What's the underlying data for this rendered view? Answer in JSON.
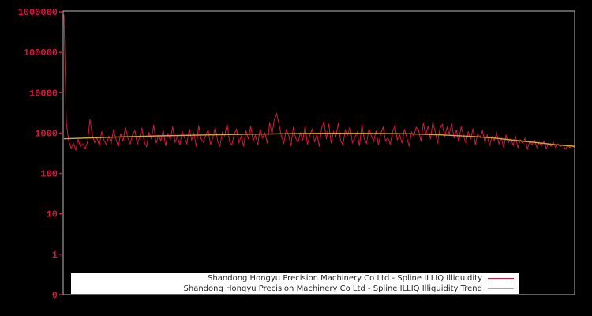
{
  "window": {
    "background_color": "#000000",
    "frame_color": "#b9b9b9"
  },
  "chart_data": {
    "type": "line",
    "title": "",
    "xlabel": "",
    "ylabel": "",
    "grid": false,
    "background": "#000000",
    "y_axis": {
      "scale": "log",
      "label_color": "#dc143c",
      "tick_labels": [
        "1000000",
        "100000",
        "10000",
        "1000",
        "100",
        "10",
        "1",
        "0"
      ],
      "tick_values": [
        1000000,
        100000,
        10000,
        1000,
        100,
        10,
        1,
        0.1
      ]
    },
    "x_axis": {
      "tick_labels": []
    },
    "legend": {
      "position": "lower center",
      "background": "#ffffff",
      "text_color": "#262626"
    },
    "series": [
      {
        "name": "Shandong Hongyu Precision Machinery Co Ltd - Spline ILLIQ Illiquidity",
        "color": "#dc143c",
        "values": [
          850000,
          1800,
          650,
          420,
          560,
          380,
          700,
          460,
          540,
          410,
          620,
          2200,
          900,
          580,
          760,
          480,
          1100,
          650,
          520,
          840,
          560,
          1250,
          700,
          460,
          980,
          620,
          1400,
          760,
          540,
          900,
          1150,
          520,
          800,
          1350,
          600,
          460,
          1050,
          720,
          1600,
          560,
          880,
          640,
          1200,
          480,
          960,
          700,
          1450,
          590,
          820,
          500,
          1100,
          760,
          540,
          1300,
          680,
          980,
          460,
          1550,
          720,
          600,
          900,
          1200,
          520,
          780,
          1400,
          640,
          480,
          1050,
          860,
          1700,
          620,
          500,
          950,
          1250,
          580,
          840,
          470,
          1150,
          700,
          1500,
          640,
          880,
          520,
          1300,
          760,
          1000,
          560,
          1800,
          950,
          2200,
          3000,
          1600,
          800,
          560,
          1200,
          900,
          480,
          1400,
          760,
          580,
          1000,
          650,
          1500,
          520,
          880,
          1250,
          600,
          950,
          460,
          1350,
          1900,
          700,
          1700,
          560,
          1100,
          820,
          1750,
          640,
          500,
          1200,
          900,
          1450,
          580,
          760,
          1050,
          480,
          1600,
          720,
          560,
          1300,
          850,
          620,
          1150,
          500,
          980,
          1400,
          640,
          760,
          530,
          1100,
          1550,
          680,
          900,
          560,
          1250,
          780,
          470,
          1050,
          850,
          1400,
          1200,
          620,
          1750,
          900,
          1500,
          700,
          1850,
          1100,
          560,
          1300,
          1650,
          800,
          1400,
          950,
          1700,
          750,
          1200,
          600,
          1450,
          850,
          560,
          1100,
          700,
          1300,
          520,
          950,
          780,
          1150,
          600,
          900,
          480,
          820,
          650,
          1000,
          540,
          760,
          440,
          880,
          580,
          720,
          500,
          840,
          430,
          680,
          560,
          740,
          400,
          620,
          520,
          660,
          440,
          580,
          490,
          630,
          410,
          560,
          470,
          600,
          430,
          540,
          460,
          520,
          400,
          480,
          440,
          500,
          420
        ]
      },
      {
        "name": "Shandong Hongyu Precision Machinery Co Ltd - Spline ILLIQ Illiquidity Trend",
        "color": "#ccaa33",
        "anchors": [
          [
            0,
            720
          ],
          [
            20,
            790
          ],
          [
            40,
            850
          ],
          [
            60,
            900
          ],
          [
            80,
            940
          ],
          [
            100,
            975
          ],
          [
            115,
            990
          ],
          [
            130,
            985
          ],
          [
            146,
            960
          ],
          [
            160,
            900
          ],
          [
            172,
            830
          ],
          [
            182,
            750
          ],
          [
            192,
            650
          ],
          [
            200,
            580
          ],
          [
            208,
            515
          ],
          [
            216,
            470
          ]
        ]
      }
    ]
  }
}
